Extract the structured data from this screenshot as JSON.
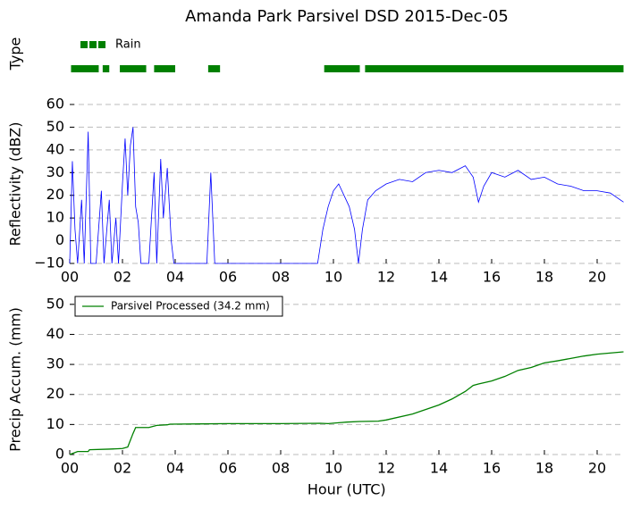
{
  "chart_data": [
    {
      "type": "broken_barh",
      "title": "Amanda Park Parsivel DSD 2015-Dec-05",
      "ylabel": "Type",
      "legend": "upper left",
      "xlim": [
        0,
        21
      ],
      "series": [
        {
          "name": "Rain",
          "color": "#008000",
          "segments": [
            [
              0.05,
              1.1
            ],
            [
              1.25,
              1.5
            ],
            [
              1.9,
              2.9
            ],
            [
              3.2,
              4.0
            ],
            [
              5.25,
              5.7
            ],
            [
              9.65,
              11.0
            ],
            [
              11.2,
              21.0
            ]
          ]
        }
      ]
    },
    {
      "type": "line",
      "ylabel": "Reflectivity (dBZ)",
      "grid": true,
      "xlim": [
        0,
        21
      ],
      "ylim": [
        -10,
        60
      ],
      "xticks": [
        {
          "value": 0,
          "label": "00"
        },
        {
          "value": 2,
          "label": "02"
        },
        {
          "value": 4,
          "label": "04"
        },
        {
          "value": 6,
          "label": "06"
        },
        {
          "value": 8,
          "label": "08"
        },
        {
          "value": 10,
          "label": "10"
        },
        {
          "value": 12,
          "label": "12"
        },
        {
          "value": 14,
          "label": "14"
        },
        {
          "value": 16,
          "label": "16"
        },
        {
          "value": 18,
          "label": "18"
        },
        {
          "value": 20,
          "label": "20"
        }
      ],
      "yticks": [
        {
          "value": -10,
          "label": "−10"
        },
        0,
        10,
        20,
        30,
        40,
        50,
        60
      ],
      "x": [
        0.0,
        0.1,
        0.2,
        0.3,
        0.45,
        0.55,
        0.7,
        0.8,
        1.0,
        1.2,
        1.3,
        1.5,
        1.6,
        1.75,
        1.85,
        2.0,
        2.1,
        2.2,
        2.3,
        2.4,
        2.5,
        2.6,
        2.7,
        3.0,
        3.2,
        3.3,
        3.45,
        3.55,
        3.7,
        3.85,
        3.95,
        5.2,
        5.35,
        5.5,
        9.4,
        9.6,
        9.8,
        10.0,
        10.2,
        10.4,
        10.6,
        10.8,
        10.95,
        11.1,
        11.3,
        11.6,
        12.0,
        12.5,
        13.0,
        13.5,
        14.0,
        14.5,
        15.0,
        15.3,
        15.5,
        15.7,
        16.0,
        16.5,
        17.0,
        17.5,
        18.0,
        18.5,
        19.0,
        19.5,
        20.0,
        20.5,
        21.0
      ],
      "series": [
        {
          "color": "#0000ff",
          "values": [
            -10,
            35,
            5,
            -10,
            18,
            -10,
            48,
            -10,
            -10,
            22,
            -10,
            18,
            -10,
            10,
            -10,
            25,
            45,
            20,
            42,
            50,
            15,
            8,
            -10,
            -10,
            30,
            -10,
            36,
            10,
            32,
            0,
            -10,
            -10,
            30,
            -10,
            -10,
            5,
            15,
            22,
            25,
            20,
            15,
            5,
            -10,
            5,
            18,
            22,
            25,
            27,
            26,
            30,
            31,
            30,
            33,
            28,
            17,
            24,
            30,
            28,
            31,
            27,
            28,
            25,
            24,
            22,
            22,
            21,
            17
          ]
        }
      ]
    },
    {
      "type": "line",
      "ylabel": "Precip Accum. (mm)",
      "xlabel": "Hour (UTC)",
      "grid": true,
      "legend": "upper left",
      "xlim": [
        0,
        21
      ],
      "ylim": [
        0,
        55
      ],
      "xticks": [
        {
          "value": 0,
          "label": "00"
        },
        {
          "value": 2,
          "label": "02"
        },
        {
          "value": 4,
          "label": "04"
        },
        {
          "value": 6,
          "label": "06"
        },
        {
          "value": 8,
          "label": "08"
        },
        {
          "value": 10,
          "label": "10"
        },
        {
          "value": 12,
          "label": "12"
        },
        {
          "value": 14,
          "label": "14"
        },
        {
          "value": 16,
          "label": "16"
        },
        {
          "value": 18,
          "label": "18"
        },
        {
          "value": 20,
          "label": "20"
        }
      ],
      "yticks": [
        0,
        10,
        20,
        30,
        40,
        50
      ],
      "x": [
        0,
        0.3,
        0.7,
        0.75,
        1.5,
        2.0,
        2.2,
        2.4,
        2.5,
        3.0,
        3.3,
        3.7,
        3.8,
        5.0,
        6,
        8,
        9.5,
        9.8,
        10.5,
        11,
        11.7,
        12,
        13,
        14,
        14.5,
        15,
        15.3,
        15.5,
        16,
        16.5,
        17,
        17.5,
        18,
        18.5,
        19,
        19.5,
        20,
        21
      ],
      "series": [
        {
          "name": "Parsivel Processed (34.2 mm)",
          "color": "#008000",
          "values": [
            0,
            1,
            1,
            1.6,
            1.8,
            2,
            2.5,
            7,
            9,
            9,
            9.7,
            9.9,
            10.1,
            10.2,
            10.3,
            10.3,
            10.4,
            10.3,
            10.8,
            11,
            11.1,
            11.5,
            13.5,
            16.5,
            18.5,
            21,
            23,
            23.5,
            24.5,
            26,
            28,
            29,
            30.5,
            31.2,
            32,
            32.8,
            33.4,
            34.2
          ]
        }
      ]
    }
  ]
}
